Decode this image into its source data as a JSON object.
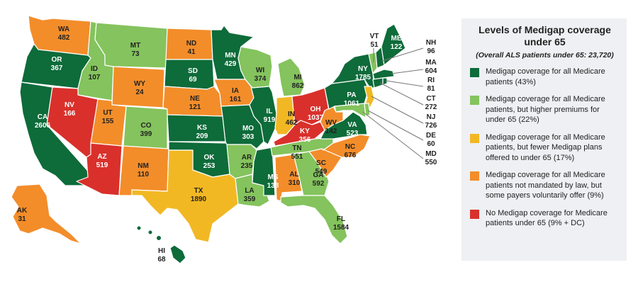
{
  "title": "Levels of Medigap coverage under 65",
  "subtitle": "(Overall ALS patients under 65: 23,720)",
  "colors": {
    "all": "#0e6b3a",
    "higher_premiums": "#84c35d",
    "fewer_plans": "#f2b824",
    "voluntary": "#f38d2a",
    "none": "#d9302b"
  },
  "legend": [
    {
      "category": "all",
      "text": "Medigap coverage for all Medicare patients (43%)"
    },
    {
      "category": "higher_premiums",
      "text": "Medigap coverage for all Medicare patients, but higher premiums for under 65 (22%)"
    },
    {
      "category": "fewer_plans",
      "text": "Medigap coverage for all Medicare patients, but fewer Medigap plans offered to under 65 (17%)"
    },
    {
      "category": "voluntary",
      "text": "Medigap coverage for all Medicare patients not mandated by law, but some payers voluntarily offer (9%)"
    },
    {
      "category": "none",
      "text": "No Medigap coverage for Medicare patients under 65 (9% + DC)"
    }
  ],
  "states": [
    {
      "code": "WA",
      "value": "482",
      "category": "voluntary"
    },
    {
      "code": "OR",
      "value": "367",
      "category": "all"
    },
    {
      "code": "CA",
      "value": "2606",
      "category": "all"
    },
    {
      "code": "ID",
      "value": "107",
      "category": "higher_premiums"
    },
    {
      "code": "NV",
      "value": "166",
      "category": "none"
    },
    {
      "code": "MT",
      "value": "73",
      "category": "higher_premiums"
    },
    {
      "code": "WY",
      "value": "24",
      "category": "voluntary"
    },
    {
      "code": "UT",
      "value": "155",
      "category": "voluntary"
    },
    {
      "code": "AZ",
      "value": "519",
      "category": "none"
    },
    {
      "code": "CO",
      "value": "399",
      "category": "higher_premiums"
    },
    {
      "code": "NM",
      "value": "110",
      "category": "voluntary"
    },
    {
      "code": "ND",
      "value": "41",
      "category": "voluntary"
    },
    {
      "code": "SD",
      "value": "69",
      "category": "all"
    },
    {
      "code": "NE",
      "value": "121",
      "category": "voluntary"
    },
    {
      "code": "KS",
      "value": "209",
      "category": "all"
    },
    {
      "code": "OK",
      "value": "253",
      "category": "all"
    },
    {
      "code": "TX",
      "value": "1890",
      "category": "fewer_plans"
    },
    {
      "code": "MN",
      "value": "429",
      "category": "all"
    },
    {
      "code": "IA",
      "value": "161",
      "category": "voluntary"
    },
    {
      "code": "MO",
      "value": "303",
      "category": "all"
    },
    {
      "code": "AR",
      "value": "235",
      "category": "higher_premiums"
    },
    {
      "code": "LA",
      "value": "359",
      "category": "higher_premiums"
    },
    {
      "code": "WI",
      "value": "374",
      "category": "higher_premiums"
    },
    {
      "code": "IL",
      "value": "919",
      "category": "all"
    },
    {
      "code": "MS",
      "value": "138",
      "category": "all"
    },
    {
      "code": "MI",
      "value": "862",
      "category": "higher_premiums"
    },
    {
      "code": "IN",
      "value": "462",
      "category": "fewer_plans"
    },
    {
      "code": "OH",
      "value": "1037",
      "category": "none"
    },
    {
      "code": "KY",
      "value": "356",
      "category": "none"
    },
    {
      "code": "TN",
      "value": "551",
      "category": "higher_premiums"
    },
    {
      "code": "AL",
      "value": "310",
      "category": "voluntary"
    },
    {
      "code": "GA",
      "value": "592",
      "category": "higher_premiums"
    },
    {
      "code": "FL",
      "value": "1584",
      "category": "higher_premiums"
    },
    {
      "code": "SC",
      "value": "549",
      "category": "voluntary"
    },
    {
      "code": "NC",
      "value": "676",
      "category": "voluntary"
    },
    {
      "code": "VA",
      "value": "523",
      "category": "all"
    },
    {
      "code": "WV",
      "value": "142",
      "category": "voluntary"
    },
    {
      "code": "PA",
      "value": "1061",
      "category": "all"
    },
    {
      "code": "NY",
      "value": "1785",
      "category": "all"
    },
    {
      "code": "VT",
      "value": "51",
      "category": "higher_premiums"
    },
    {
      "code": "ME",
      "value": "122",
      "category": "all"
    },
    {
      "code": "NH",
      "value": "96",
      "category": "all"
    },
    {
      "code": "MA",
      "value": "604",
      "category": "all"
    },
    {
      "code": "RI",
      "value": "81",
      "category": "all"
    },
    {
      "code": "CT",
      "value": "272",
      "category": "all"
    },
    {
      "code": "NJ",
      "value": "726",
      "category": "fewer_plans"
    },
    {
      "code": "DE",
      "value": "60",
      "category": "higher_premiums"
    },
    {
      "code": "MD",
      "value": "550",
      "category": "higher_premiums"
    },
    {
      "code": "AK",
      "value": "31",
      "category": "voluntary"
    },
    {
      "code": "HI",
      "value": "68",
      "category": "all"
    }
  ]
}
